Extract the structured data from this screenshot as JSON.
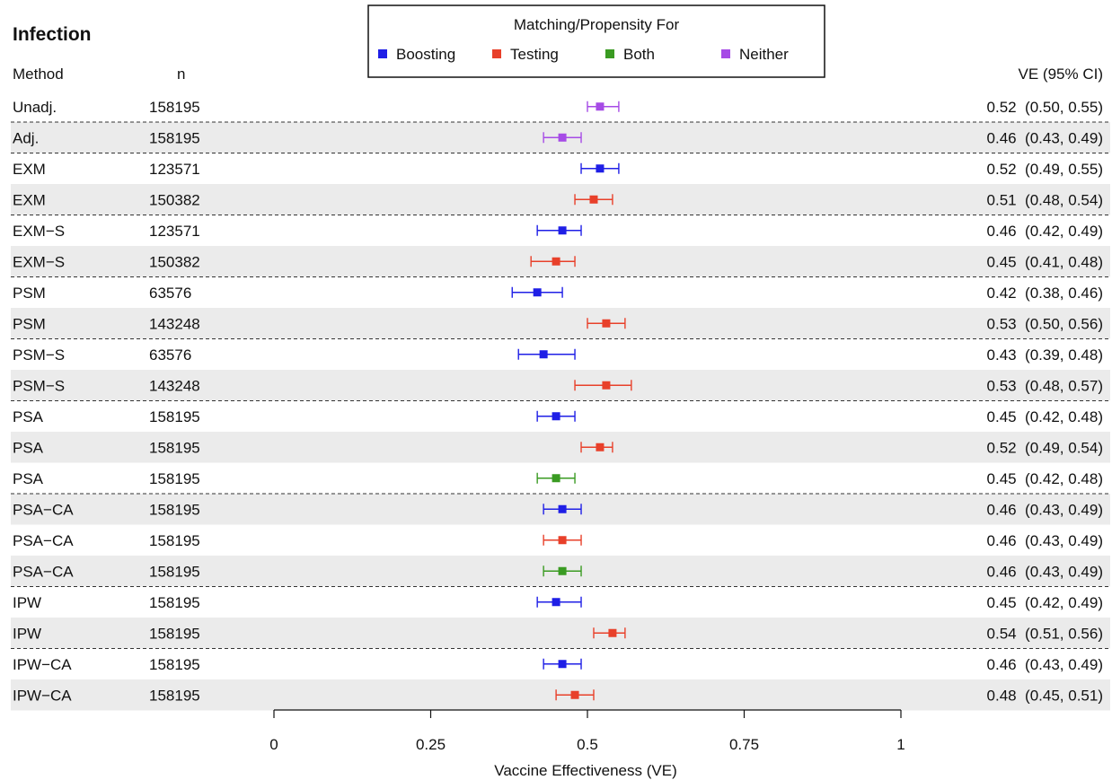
{
  "chart_data": {
    "type": "forest",
    "title": "Infection",
    "legend": {
      "title": "Matching/Propensity For",
      "placement": "top-center",
      "items": [
        {
          "key": "boosting",
          "label": "Boosting",
          "color": "#1f1fe6"
        },
        {
          "key": "testing",
          "label": "Testing",
          "color": "#e8402a"
        },
        {
          "key": "both",
          "label": "Both",
          "color": "#3a9b22"
        },
        {
          "key": "neither",
          "label": "Neither",
          "color": "#a64be6"
        }
      ]
    },
    "columns": {
      "method": "Method",
      "n": "n",
      "ve": "VE (95% CI)"
    },
    "xlabel": "Vaccine Effectiveness (VE)",
    "xlim": [
      0,
      1
    ],
    "xticks": [
      0,
      0.25,
      0.5,
      0.75,
      1
    ],
    "xtick_labels": [
      "0",
      "0.25",
      "0.5",
      "0.75",
      "1"
    ],
    "rows": [
      {
        "method": "Unadj.",
        "n": "158195",
        "group": "neither",
        "est": 0.52,
        "lo": 0.5,
        "hi": 0.55,
        "label": "0.52  (0.50, 0.55)"
      },
      {
        "method": "Adj.",
        "n": "158195",
        "group": "neither",
        "est": 0.46,
        "lo": 0.43,
        "hi": 0.49,
        "label": "0.46  (0.43, 0.49)"
      },
      {
        "method": "EXM",
        "n": "123571",
        "group": "boosting",
        "est": 0.52,
        "lo": 0.49,
        "hi": 0.55,
        "label": "0.52  (0.49, 0.55)"
      },
      {
        "method": "EXM",
        "n": "150382",
        "group": "testing",
        "est": 0.51,
        "lo": 0.48,
        "hi": 0.54,
        "label": "0.51  (0.48, 0.54)"
      },
      {
        "method": "EXM−S",
        "n": "123571",
        "group": "boosting",
        "est": 0.46,
        "lo": 0.42,
        "hi": 0.49,
        "label": "0.46  (0.42, 0.49)"
      },
      {
        "method": "EXM−S",
        "n": "150382",
        "group": "testing",
        "est": 0.45,
        "lo": 0.41,
        "hi": 0.48,
        "label": "0.45  (0.41, 0.48)"
      },
      {
        "method": "PSM",
        "n": "63576",
        "group": "boosting",
        "est": 0.42,
        "lo": 0.38,
        "hi": 0.46,
        "label": "0.42  (0.38, 0.46)"
      },
      {
        "method": "PSM",
        "n": "143248",
        "group": "testing",
        "est": 0.53,
        "lo": 0.5,
        "hi": 0.56,
        "label": "0.53  (0.50, 0.56)"
      },
      {
        "method": "PSM−S",
        "n": "63576",
        "group": "boosting",
        "est": 0.43,
        "lo": 0.39,
        "hi": 0.48,
        "label": "0.43  (0.39, 0.48)"
      },
      {
        "method": "PSM−S",
        "n": "143248",
        "group": "testing",
        "est": 0.53,
        "lo": 0.48,
        "hi": 0.57,
        "label": "0.53  (0.48, 0.57)"
      },
      {
        "method": "PSA",
        "n": "158195",
        "group": "boosting",
        "est": 0.45,
        "lo": 0.42,
        "hi": 0.48,
        "label": "0.45  (0.42, 0.48)"
      },
      {
        "method": "PSA",
        "n": "158195",
        "group": "testing",
        "est": 0.52,
        "lo": 0.49,
        "hi": 0.54,
        "label": "0.52  (0.49, 0.54)"
      },
      {
        "method": "PSA",
        "n": "158195",
        "group": "both",
        "est": 0.45,
        "lo": 0.42,
        "hi": 0.48,
        "label": "0.45  (0.42, 0.48)"
      },
      {
        "method": "PSA−CA",
        "n": "158195",
        "group": "boosting",
        "est": 0.46,
        "lo": 0.43,
        "hi": 0.49,
        "label": "0.46  (0.43, 0.49)"
      },
      {
        "method": "PSA−CA",
        "n": "158195",
        "group": "testing",
        "est": 0.46,
        "lo": 0.43,
        "hi": 0.49,
        "label": "0.46  (0.43, 0.49)"
      },
      {
        "method": "PSA−CA",
        "n": "158195",
        "group": "both",
        "est": 0.46,
        "lo": 0.43,
        "hi": 0.49,
        "label": "0.46  (0.43, 0.49)"
      },
      {
        "method": "IPW",
        "n": "158195",
        "group": "boosting",
        "est": 0.45,
        "lo": 0.42,
        "hi": 0.49,
        "label": "0.45  (0.42, 0.49)"
      },
      {
        "method": "IPW",
        "n": "158195",
        "group": "testing",
        "est": 0.54,
        "lo": 0.51,
        "hi": 0.56,
        "label": "0.54  (0.51, 0.56)"
      },
      {
        "method": "IPW−CA",
        "n": "158195",
        "group": "boosting",
        "est": 0.46,
        "lo": 0.43,
        "hi": 0.49,
        "label": "0.46  (0.43, 0.49)"
      },
      {
        "method": "IPW−CA",
        "n": "158195",
        "group": "testing",
        "est": 0.48,
        "lo": 0.45,
        "hi": 0.51,
        "label": "0.48  (0.45, 0.51)"
      }
    ],
    "group_separators_after_rows": [
      0,
      1,
      3,
      5,
      7,
      9,
      12,
      15,
      17
    ],
    "alternate_row_shading": true
  }
}
